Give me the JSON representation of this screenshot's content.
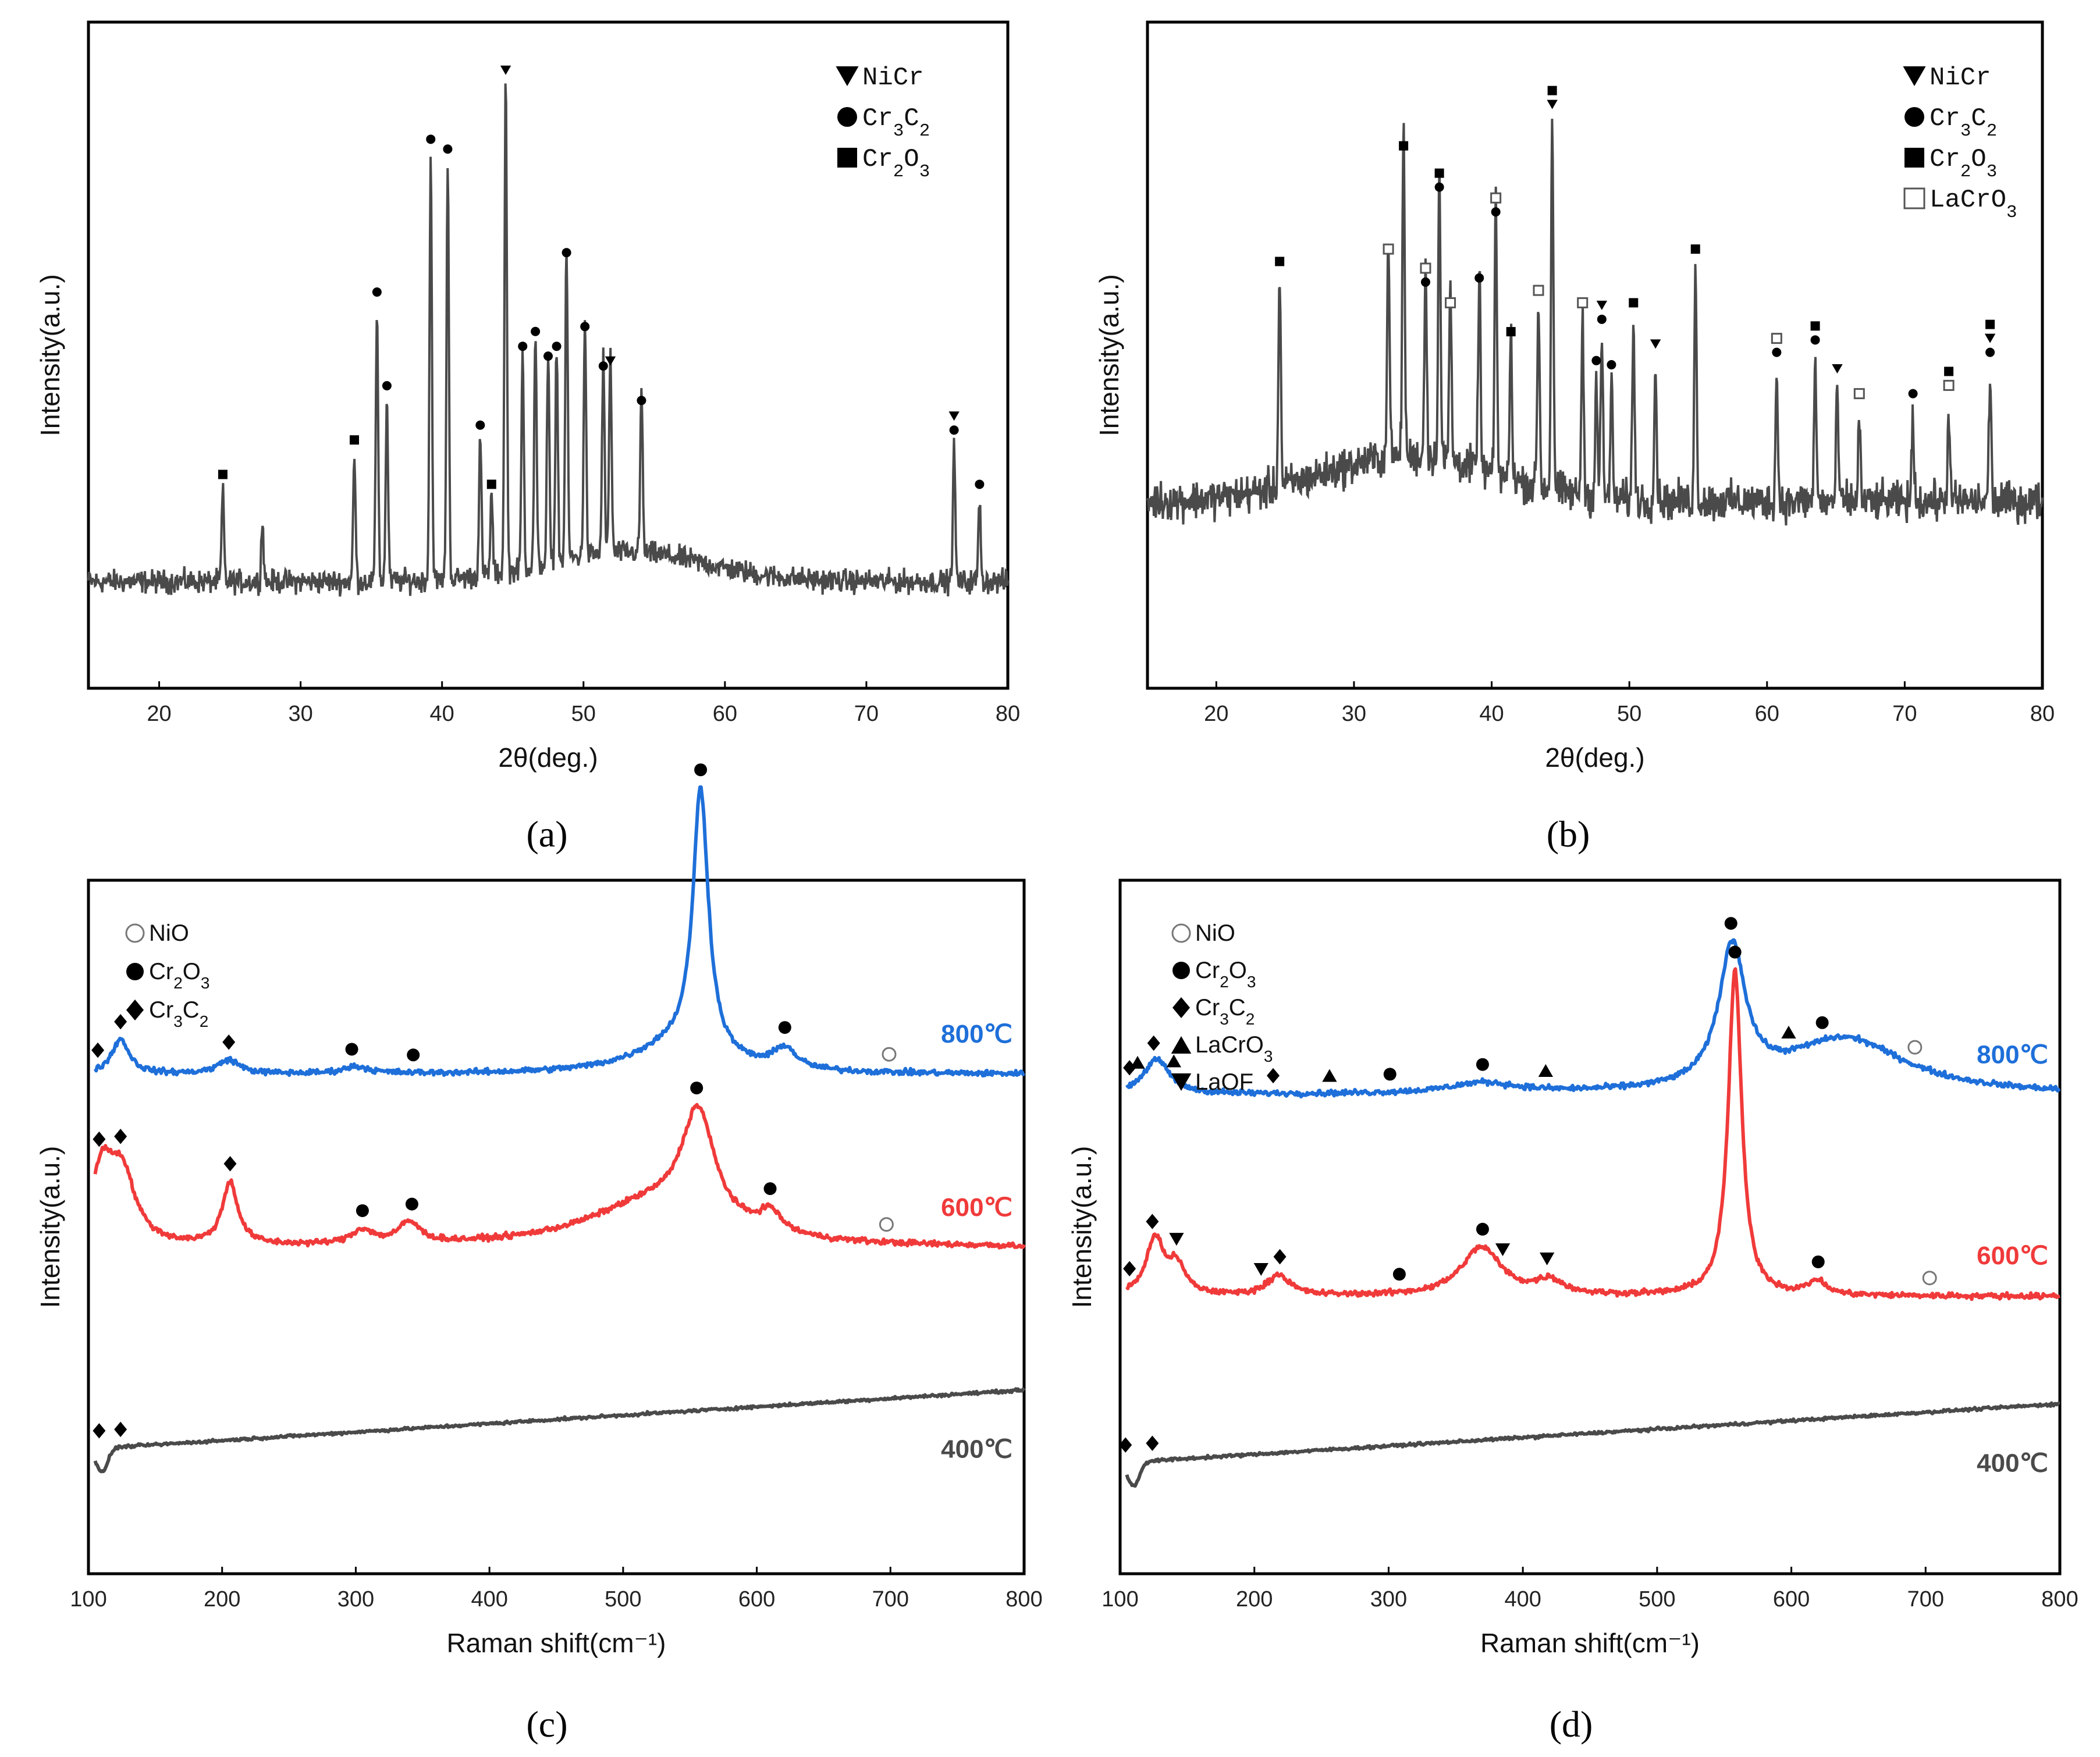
{
  "chart_data": [
    {
      "panel": "(a)",
      "type": "line",
      "xlabel": "2θ(deg.)",
      "ylabel": "Intensity(a.u.)",
      "xlim": [
        15,
        80
      ],
      "xticks": [
        20,
        30,
        40,
        50,
        60,
        70,
        80
      ],
      "line_color": "#4a4a4a",
      "legend": [
        {
          "marker": "down-triangle",
          "label": "NiCr"
        },
        {
          "marker": "circle",
          "label": "Cr₃C₂"
        },
        {
          "marker": "square",
          "label": "Cr₂O₃"
        }
      ],
      "peaks": [
        {
          "x": 24.5,
          "h": 0.18,
          "markers": [
            "square"
          ]
        },
        {
          "x": 27.3,
          "h": 0.12,
          "markers": []
        },
        {
          "x": 33.8,
          "h": 0.25,
          "markers": [
            "square"
          ]
        },
        {
          "x": 35.4,
          "h": 0.55,
          "markers": [
            "circle"
          ]
        },
        {
          "x": 36.1,
          "h": 0.36,
          "markers": [
            "circle"
          ]
        },
        {
          "x": 39.2,
          "h": 0.86,
          "markers": [
            "circle"
          ]
        },
        {
          "x": 40.4,
          "h": 0.84,
          "markers": [
            "circle"
          ]
        },
        {
          "x": 42.7,
          "h": 0.28,
          "markers": [
            "circle"
          ]
        },
        {
          "x": 43.5,
          "h": 0.16,
          "markers": [
            "square"
          ]
        },
        {
          "x": 44.5,
          "h": 1.0,
          "markers": [
            "down-triangle"
          ]
        },
        {
          "x": 45.7,
          "h": 0.44,
          "markers": [
            "circle"
          ]
        },
        {
          "x": 46.6,
          "h": 0.47,
          "markers": [
            "circle"
          ]
        },
        {
          "x": 47.5,
          "h": 0.42,
          "markers": [
            "circle"
          ]
        },
        {
          "x": 48.1,
          "h": 0.44,
          "markers": [
            "circle"
          ]
        },
        {
          "x": 48.8,
          "h": 0.63,
          "markers": [
            "circle"
          ]
        },
        {
          "x": 50.1,
          "h": 0.48,
          "markers": [
            "circle"
          ]
        },
        {
          "x": 51.4,
          "h": 0.4,
          "markers": [
            "circle"
          ]
        },
        {
          "x": 51.9,
          "h": 0.41,
          "markers": [
            "down-triangle"
          ]
        },
        {
          "x": 54.1,
          "h": 0.33,
          "markers": [
            "circle"
          ]
        },
        {
          "x": 76.2,
          "h": 0.27,
          "markers": [
            "down-triangle",
            "circle"
          ]
        },
        {
          "x": 78.0,
          "h": 0.16,
          "markers": [
            "circle"
          ]
        }
      ]
    },
    {
      "panel": "(b)",
      "type": "line",
      "xlabel": "2θ(deg.)",
      "ylabel": "Intensity(a.u.)",
      "xlim": [
        15,
        80
      ],
      "xticks": [
        20,
        30,
        40,
        50,
        60,
        70,
        80
      ],
      "line_color": "#4a4a4a",
      "legend": [
        {
          "marker": "down-triangle",
          "label": "NiCr"
        },
        {
          "marker": "circle",
          "label": "Cr₃C₂"
        },
        {
          "marker": "square",
          "label": "Cr₂O₃"
        },
        {
          "marker": "open-square",
          "label": "LaCrO₃"
        }
      ],
      "peaks": [
        {
          "x": 24.6,
          "h": 0.52,
          "markers": [
            "square"
          ]
        },
        {
          "x": 32.5,
          "h": 0.55,
          "markers": [
            "open-square"
          ]
        },
        {
          "x": 33.6,
          "h": 0.8,
          "markers": [
            "square"
          ]
        },
        {
          "x": 35.2,
          "h": 0.47,
          "markers": [
            "open-square",
            "circle"
          ]
        },
        {
          "x": 36.2,
          "h": 0.7,
          "markers": [
            "square",
            "circle"
          ]
        },
        {
          "x": 37.0,
          "h": 0.42,
          "markers": [
            "open-square"
          ]
        },
        {
          "x": 39.1,
          "h": 0.48,
          "markers": [
            "circle"
          ]
        },
        {
          "x": 40.3,
          "h": 0.64,
          "markers": [
            "open-square",
            "circle"
          ]
        },
        {
          "x": 41.4,
          "h": 0.35,
          "markers": [
            "square"
          ]
        },
        {
          "x": 43.4,
          "h": 0.45,
          "markers": [
            "open-square"
          ]
        },
        {
          "x": 44.4,
          "h": 0.9,
          "markers": [
            "square",
            "down-triangle"
          ]
        },
        {
          "x": 46.6,
          "h": 0.42,
          "markers": [
            "open-square"
          ]
        },
        {
          "x": 47.6,
          "h": 0.28,
          "markers": [
            "circle"
          ]
        },
        {
          "x": 48.0,
          "h": 0.38,
          "markers": [
            "down-triangle",
            "circle"
          ]
        },
        {
          "x": 48.7,
          "h": 0.27,
          "markers": [
            "circle"
          ]
        },
        {
          "x": 50.3,
          "h": 0.42,
          "markers": [
            "square"
          ]
        },
        {
          "x": 51.9,
          "h": 0.32,
          "markers": [
            "down-triangle"
          ]
        },
        {
          "x": 54.8,
          "h": 0.55,
          "markers": [
            "square"
          ]
        },
        {
          "x": 60.7,
          "h": 0.3,
          "markers": [
            "open-square",
            "circle"
          ]
        },
        {
          "x": 63.5,
          "h": 0.33,
          "markers": [
            "square",
            "circle"
          ]
        },
        {
          "x": 65.1,
          "h": 0.26,
          "markers": [
            "down-triangle"
          ]
        },
        {
          "x": 66.7,
          "h": 0.2,
          "markers": [
            "open-square"
          ]
        },
        {
          "x": 70.6,
          "h": 0.2,
          "markers": [
            "circle"
          ]
        },
        {
          "x": 73.2,
          "h": 0.22,
          "markers": [
            "square",
            "open-square"
          ]
        },
        {
          "x": 76.2,
          "h": 0.3,
          "markers": [
            "square",
            "down-triangle",
            "circle"
          ]
        }
      ]
    },
    {
      "panel": "(c)",
      "type": "line",
      "xlabel": "Raman shift(cm⁻¹)",
      "ylabel": "Intensity(a.u.)",
      "xlim": [
        100,
        800
      ],
      "xticks": [
        100,
        200,
        300,
        400,
        500,
        600,
        700,
        800
      ],
      "legend": [
        {
          "marker": "open-circle",
          "label": "NiO"
        },
        {
          "marker": "circle",
          "label": "Cr₂O₃"
        },
        {
          "marker": "diamond",
          "label": "Cr₃C₂"
        }
      ],
      "series": [
        {
          "name": "800℃",
          "color": "#1e6fd9",
          "baseline": 0.72,
          "features": [
            {
              "x": 124,
              "h": 0.05,
              "w": 8
            },
            {
              "x": 205,
              "h": 0.02,
              "w": 10
            },
            {
              "x": 300,
              "h": 0.01,
              "w": 12
            },
            {
              "x": 558,
              "h": 0.38,
              "w": 7
            },
            {
              "x": 540,
              "h": 0.04,
              "w": 40
            },
            {
              "x": 621,
              "h": 0.03,
              "w": 10
            }
          ],
          "markers": [
            {
              "x": 107,
              "m": "diamond"
            },
            {
              "x": 124,
              "m": "diamond"
            },
            {
              "x": 205,
              "m": "diamond"
            },
            {
              "x": 297,
              "m": "circle"
            },
            {
              "x": 343,
              "m": "circle"
            },
            {
              "x": 558,
              "m": "circle"
            },
            {
              "x": 621,
              "m": "circle"
            },
            {
              "x": 699,
              "m": "open-circle"
            }
          ]
        },
        {
          "name": "600℃",
          "color": "#f03a3a",
          "baseline": 0.47,
          "features": [
            {
              "x": 110,
              "h": 0.1,
              "w": 10
            },
            {
              "x": 125,
              "h": 0.1,
              "w": 12
            },
            {
              "x": 206,
              "h": 0.09,
              "w": 7
            },
            {
              "x": 305,
              "h": 0.02,
              "w": 10
            },
            {
              "x": 340,
              "h": 0.03,
              "w": 10
            },
            {
              "x": 556,
              "h": 0.16,
              "w": 15
            },
            {
              "x": 520,
              "h": 0.06,
              "w": 60
            },
            {
              "x": 610,
              "h": 0.03,
              "w": 10
            }
          ],
          "markers": [
            {
              "x": 108,
              "m": "diamond"
            },
            {
              "x": 124,
              "m": "diamond"
            },
            {
              "x": 206,
              "m": "diamond"
            },
            {
              "x": 305,
              "m": "circle"
            },
            {
              "x": 342,
              "m": "circle"
            },
            {
              "x": 555,
              "m": "circle"
            },
            {
              "x": 610,
              "m": "circle"
            },
            {
              "x": 697,
              "m": "open-circle"
            }
          ]
        },
        {
          "name": "400℃",
          "color": "#4a4a4a",
          "baseline": 0.18,
          "features": [],
          "markers": [
            {
              "x": 108,
              "m": "diamond"
            },
            {
              "x": 124,
              "m": "diamond"
            }
          ]
        }
      ]
    },
    {
      "panel": "(d)",
      "type": "line",
      "xlabel": "Raman shift(cm⁻¹)",
      "ylabel": "Intensity(a.u.)",
      "xlim": [
        100,
        800
      ],
      "xticks": [
        100,
        200,
        300,
        400,
        500,
        600,
        700,
        800
      ],
      "legend": [
        {
          "marker": "open-circle",
          "label": "NiO"
        },
        {
          "marker": "circle",
          "label": "Cr₂O₃"
        },
        {
          "marker": "diamond",
          "label": "Cr₃C₂"
        },
        {
          "marker": "up-triangle",
          "label": "LaCrO₃"
        },
        {
          "marker": "down-triangle",
          "label": "LaOF"
        }
      ],
      "series": [
        {
          "name": "800℃",
          "color": "#1e6fd9",
          "baseline": 0.69,
          "features": [
            {
              "x": 127,
              "h": 0.05,
              "w": 12
            },
            {
              "x": 556,
              "h": 0.2,
              "w": 12
            },
            {
              "x": 640,
              "h": 0.08,
              "w": 55
            },
            {
              "x": 370,
              "h": 0.015,
              "w": 30
            }
          ],
          "markers": [
            {
              "x": 107,
              "m": "diamond"
            },
            {
              "x": 113,
              "m": "up-triangle"
            },
            {
              "x": 125,
              "m": "diamond"
            },
            {
              "x": 140,
              "m": "up-triangle"
            },
            {
              "x": 214,
              "m": "diamond"
            },
            {
              "x": 256,
              "m": "up-triangle"
            },
            {
              "x": 301,
              "m": "circle"
            },
            {
              "x": 370,
              "m": "circle"
            },
            {
              "x": 417,
              "m": "up-triangle"
            },
            {
              "x": 555,
              "m": "circle"
            },
            {
              "x": 598,
              "m": "up-triangle"
            },
            {
              "x": 623,
              "m": "circle"
            },
            {
              "x": 692,
              "m": "open-circle"
            }
          ]
        },
        {
          "name": "600℃",
          "color": "#f03a3a",
          "baseline": 0.4,
          "features": [
            {
              "x": 126,
              "h": 0.08,
              "w": 8
            },
            {
              "x": 142,
              "h": 0.04,
              "w": 8
            },
            {
              "x": 218,
              "h": 0.03,
              "w": 10
            },
            {
              "x": 369,
              "h": 0.07,
              "w": 18
            },
            {
              "x": 420,
              "h": 0.02,
              "w": 12
            },
            {
              "x": 558,
              "h": 0.47,
              "w": 6
            },
            {
              "x": 619,
              "h": 0.02,
              "w": 8
            }
          ],
          "markers": [
            {
              "x": 107,
              "m": "diamond"
            },
            {
              "x": 124,
              "m": "diamond"
            },
            {
              "x": 142,
              "m": "down-triangle"
            },
            {
              "x": 205,
              "m": "down-triangle"
            },
            {
              "x": 219,
              "m": "diamond"
            },
            {
              "x": 308,
              "m": "circle"
            },
            {
              "x": 370,
              "m": "circle"
            },
            {
              "x": 385,
              "m": "down-triangle"
            },
            {
              "x": 418,
              "m": "down-triangle"
            },
            {
              "x": 558,
              "m": "circle"
            },
            {
              "x": 620,
              "m": "circle"
            },
            {
              "x": 703,
              "m": "open-circle"
            }
          ]
        },
        {
          "name": "400℃",
          "color": "#4a4a4a",
          "baseline": 0.16,
          "features": [],
          "markers": [
            {
              "x": 104,
              "m": "diamond"
            },
            {
              "x": 124,
              "m": "diamond"
            }
          ]
        }
      ]
    }
  ]
}
